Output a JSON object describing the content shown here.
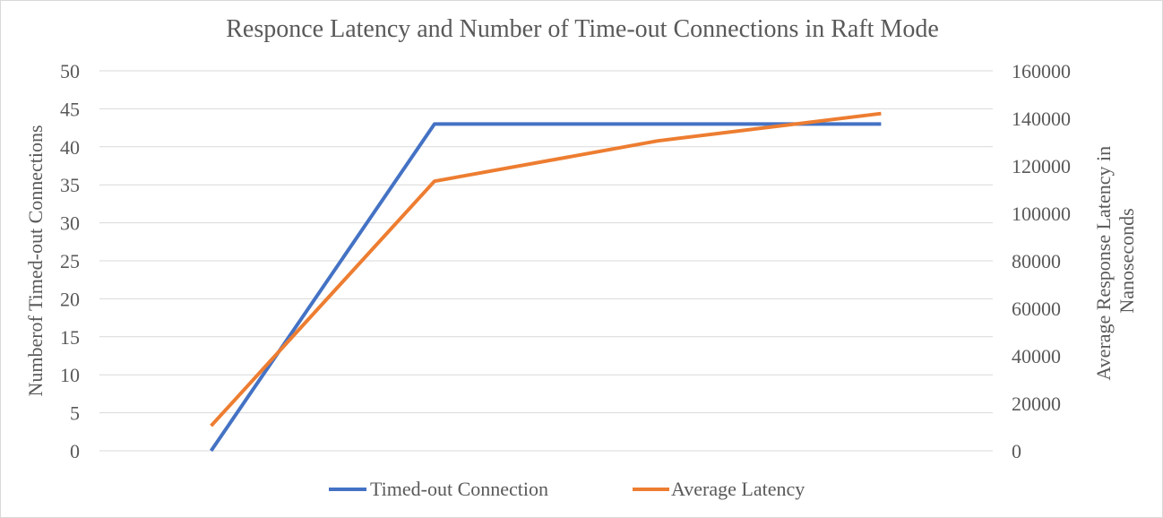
{
  "chart_data": {
    "type": "line",
    "title": "Responce Latency and Number of Time-out Connections in Raft Mode",
    "ylabel_left": "Numberof Timed-out Connections",
    "ylabel_right_lines": [
      "Average Response Latency in",
      "Nanoseconds"
    ],
    "x": [
      1,
      2,
      3,
      4
    ],
    "ylim_left": [
      0,
      50
    ],
    "yticks_left": [
      0,
      5,
      10,
      15,
      20,
      25,
      30,
      35,
      40,
      45,
      50
    ],
    "ylim_right": [
      0,
      160000
    ],
    "yticks_right": [
      0,
      20000,
      40000,
      60000,
      80000,
      100000,
      120000,
      140000,
      160000
    ],
    "grid": true,
    "legend_position": "bottom",
    "series": [
      {
        "name": "Timed-out Connection",
        "axis": "left",
        "color": "#4472c4",
        "values": [
          0,
          43,
          43,
          43
        ]
      },
      {
        "name": "Average Latency",
        "axis": "right",
        "color": "#ed7d31",
        "values": [
          10500,
          113500,
          130500,
          142000
        ]
      }
    ]
  }
}
